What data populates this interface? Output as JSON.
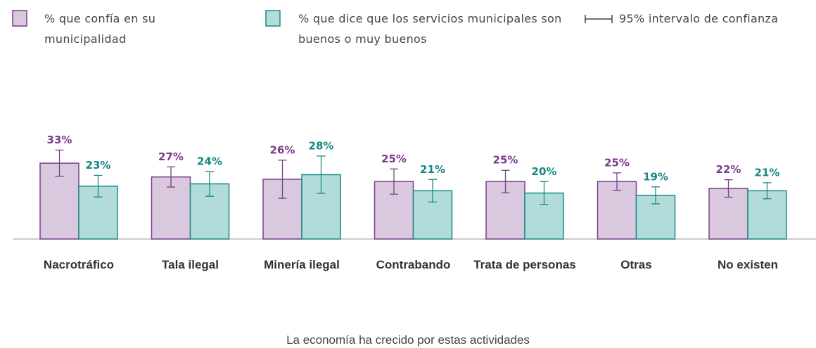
{
  "chart_data": {
    "type": "bar",
    "categories": [
      "Nacrotráfico",
      "Tala ilegal",
      "Minería ilegal",
      "Contrabando",
      "Trata de personas",
      "Otras",
      "No existen"
    ],
    "series": [
      {
        "name": "% que confía en su municipalidad",
        "color": "#d9c8de",
        "stroke": "#7a3f8a",
        "label_color": "#7b3a8c",
        "values": [
          33,
          27,
          26,
          25,
          25,
          25,
          22
        ],
        "value_labels": [
          "33%",
          "27%",
          "26%",
          "25%",
          "25%",
          "25%",
          "22%"
        ],
        "errors": [
          5.7,
          4.4,
          8.3,
          5.5,
          4.9,
          3.8,
          3.8
        ]
      },
      {
        "name": "% que dice que los servicios municipales son buenos o muy buenos",
        "color": "#b2dcd9",
        "stroke": "#1a8a85",
        "label_color": "#138783",
        "values": [
          23,
          24,
          28,
          21,
          20,
          19,
          21
        ],
        "value_labels": [
          "23%",
          "24%",
          "28%",
          "21%",
          "20%",
          "19%",
          "21%"
        ],
        "errors": [
          4.7,
          5.4,
          8.1,
          4.9,
          5.0,
          3.7,
          3.5
        ]
      }
    ],
    "ci_label": "95% intervalo de confianza",
    "x_label": "La economía ha crecido por estas actividades"
  }
}
